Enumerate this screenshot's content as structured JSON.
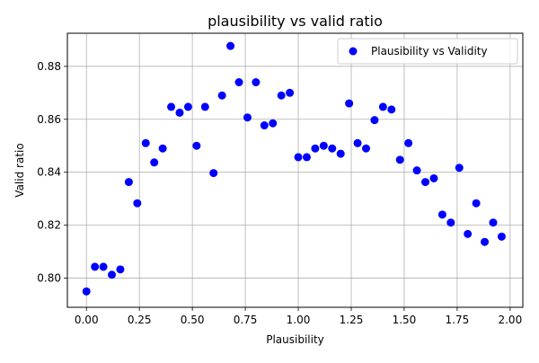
{
  "chart_data": {
    "type": "scatter",
    "title": "plausibility vs valid ratio",
    "xlabel": "Plausibility",
    "ylabel": "Valid ratio",
    "xlim": [
      -0.09,
      2.06
    ],
    "ylim": [
      0.789,
      0.8925
    ],
    "xticks": [
      0.0,
      0.25,
      0.5,
      0.75,
      1.0,
      1.25,
      1.5,
      1.75,
      2.0
    ],
    "xtick_labels": [
      "0.00",
      "0.25",
      "0.50",
      "0.75",
      "1.00",
      "1.25",
      "1.50",
      "1.75",
      "2.00"
    ],
    "yticks": [
      0.8,
      0.82,
      0.84,
      0.86,
      0.88
    ],
    "ytick_labels": [
      "0.80",
      "0.82",
      "0.84",
      "0.86",
      "0.88"
    ],
    "grid": true,
    "legend_position": "upper-right",
    "series": [
      {
        "name": "Plausibility vs Validity",
        "color": "#0000ff",
        "marker": "circle",
        "x": [
          0.0,
          0.04,
          0.08,
          0.12,
          0.16,
          0.2,
          0.24,
          0.28,
          0.32,
          0.36,
          0.4,
          0.44,
          0.48,
          0.52,
          0.56,
          0.6,
          0.64,
          0.68,
          0.72,
          0.76,
          0.8,
          0.84,
          0.88,
          0.92,
          0.96,
          1.0,
          1.04,
          1.08,
          1.12,
          1.16,
          1.2,
          1.24,
          1.28,
          1.32,
          1.36,
          1.4,
          1.44,
          1.48,
          1.52,
          1.56,
          1.6,
          1.64,
          1.68,
          1.72,
          1.76,
          1.8,
          1.84,
          1.88,
          1.92,
          1.96
        ],
        "y": [
          0.795,
          0.8043,
          0.8043,
          0.8013,
          0.8033,
          0.8363,
          0.8283,
          0.851,
          0.8437,
          0.849,
          0.8647,
          0.8625,
          0.8647,
          0.85,
          0.8647,
          0.8397,
          0.869,
          0.8877,
          0.874,
          0.8607,
          0.874,
          0.8577,
          0.8585,
          0.869,
          0.87,
          0.8457,
          0.8457,
          0.849,
          0.85,
          0.849,
          0.847,
          0.866,
          0.851,
          0.849,
          0.8597,
          0.8647,
          0.8637,
          0.8447,
          0.851,
          0.8407,
          0.8363,
          0.8377,
          0.824,
          0.821,
          0.8417,
          0.8167,
          0.8283,
          0.8137,
          0.821,
          0.8157
        ]
      }
    ]
  }
}
